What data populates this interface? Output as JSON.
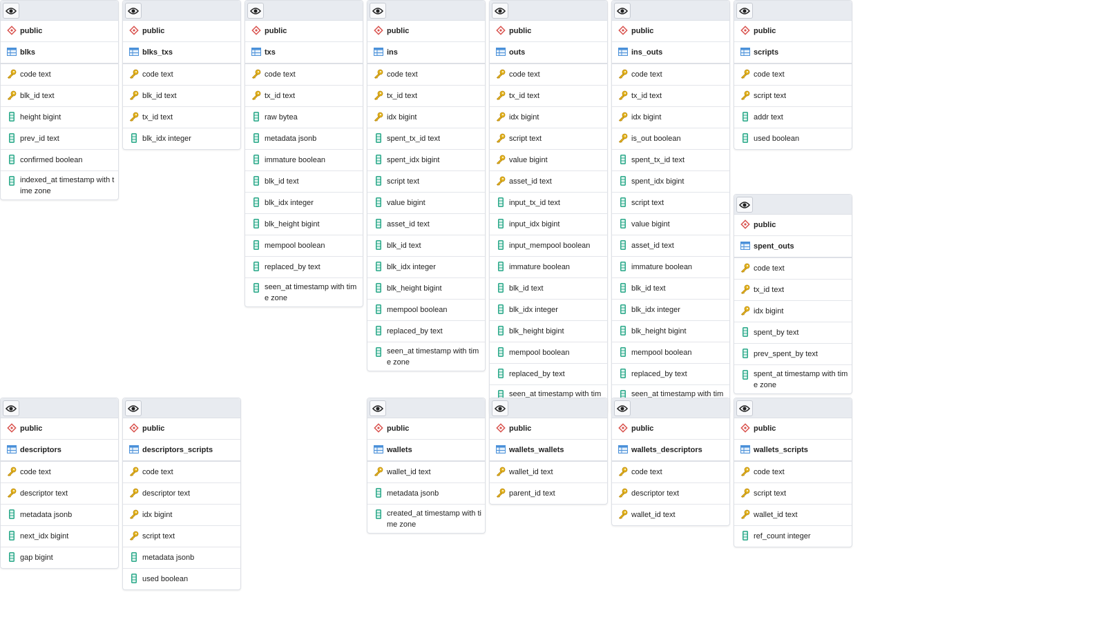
{
  "colors": {
    "header_bg": "#e8ebf0",
    "schema_icon": "#d9534f",
    "table_icon": "#4a90d9",
    "key_icon": "#e5b620",
    "column_icon": "#2aa889"
  },
  "tables": [
    {
      "schema": "public",
      "name": "blks",
      "columns": [
        {
          "label": "code text",
          "key": true
        },
        {
          "label": "blk_id text",
          "key": true
        },
        {
          "label": "height bigint",
          "key": false
        },
        {
          "label": "prev_id text",
          "key": false
        },
        {
          "label": "confirmed boolean",
          "key": false
        },
        {
          "label": "indexed_at timestamp with time zone",
          "key": false
        }
      ]
    },
    {
      "schema": "public",
      "name": "blks_txs",
      "columns": [
        {
          "label": "code text",
          "key": true
        },
        {
          "label": "blk_id text",
          "key": true
        },
        {
          "label": "tx_id text",
          "key": true
        },
        {
          "label": "blk_idx integer",
          "key": false
        }
      ]
    },
    {
      "schema": "public",
      "name": "txs",
      "columns": [
        {
          "label": "code text",
          "key": true
        },
        {
          "label": "tx_id text",
          "key": true
        },
        {
          "label": "raw bytea",
          "key": false
        },
        {
          "label": "metadata jsonb",
          "key": false
        },
        {
          "label": "immature boolean",
          "key": false
        },
        {
          "label": "blk_id text",
          "key": false
        },
        {
          "label": "blk_idx integer",
          "key": false
        },
        {
          "label": "blk_height bigint",
          "key": false
        },
        {
          "label": "mempool boolean",
          "key": false
        },
        {
          "label": "replaced_by text",
          "key": false
        },
        {
          "label": "seen_at timestamp with time zone",
          "key": false
        }
      ]
    },
    {
      "schema": "public",
      "name": "ins",
      "columns": [
        {
          "label": "code text",
          "key": true
        },
        {
          "label": "tx_id text",
          "key": true
        },
        {
          "label": "idx bigint",
          "key": true
        },
        {
          "label": "spent_tx_id text",
          "key": false
        },
        {
          "label": "spent_idx bigint",
          "key": false
        },
        {
          "label": "script text",
          "key": false
        },
        {
          "label": "value bigint",
          "key": false
        },
        {
          "label": "asset_id text",
          "key": false
        },
        {
          "label": "blk_id text",
          "key": false
        },
        {
          "label": "blk_idx integer",
          "key": false
        },
        {
          "label": "blk_height bigint",
          "key": false
        },
        {
          "label": "mempool boolean",
          "key": false
        },
        {
          "label": "replaced_by text",
          "key": false
        },
        {
          "label": "seen_at timestamp with time zone",
          "key": false
        }
      ]
    },
    {
      "schema": "public",
      "name": "outs",
      "columns": [
        {
          "label": "code text",
          "key": true
        },
        {
          "label": "tx_id text",
          "key": true
        },
        {
          "label": "idx bigint",
          "key": true
        },
        {
          "label": "script text",
          "key": true
        },
        {
          "label": "value bigint",
          "key": true
        },
        {
          "label": "asset_id text",
          "key": true
        },
        {
          "label": "input_tx_id text",
          "key": false
        },
        {
          "label": "input_idx bigint",
          "key": false
        },
        {
          "label": "input_mempool boolean",
          "key": false
        },
        {
          "label": "immature boolean",
          "key": false
        },
        {
          "label": "blk_id text",
          "key": false
        },
        {
          "label": "blk_idx integer",
          "key": false
        },
        {
          "label": "blk_height bigint",
          "key": false
        },
        {
          "label": "mempool boolean",
          "key": false
        },
        {
          "label": "replaced_by text",
          "key": false
        },
        {
          "label": "seen_at timestamp with time zone",
          "key": false
        }
      ]
    },
    {
      "schema": "public",
      "name": "ins_outs",
      "columns": [
        {
          "label": "code text",
          "key": true
        },
        {
          "label": "tx_id text",
          "key": true
        },
        {
          "label": "idx bigint",
          "key": true
        },
        {
          "label": "is_out boolean",
          "key": true
        },
        {
          "label": "spent_tx_id text",
          "key": false
        },
        {
          "label": "spent_idx bigint",
          "key": false
        },
        {
          "label": "script text",
          "key": false
        },
        {
          "label": "value bigint",
          "key": false
        },
        {
          "label": "asset_id text",
          "key": false
        },
        {
          "label": "immature boolean",
          "key": false
        },
        {
          "label": "blk_id text",
          "key": false
        },
        {
          "label": "blk_idx integer",
          "key": false
        },
        {
          "label": "blk_height bigint",
          "key": false
        },
        {
          "label": "mempool boolean",
          "key": false
        },
        {
          "label": "replaced_by text",
          "key": false
        },
        {
          "label": "seen_at timestamp with time zone",
          "key": false
        }
      ]
    },
    {
      "schema": "public",
      "name": "scripts",
      "columns": [
        {
          "label": "code text",
          "key": true
        },
        {
          "label": "script text",
          "key": true
        },
        {
          "label": "addr text",
          "key": false
        },
        {
          "label": "used boolean",
          "key": false
        }
      ]
    },
    {
      "schema": "public",
      "name": "spent_outs",
      "columns": [
        {
          "label": "code text",
          "key": true
        },
        {
          "label": "tx_id text",
          "key": true
        },
        {
          "label": "idx bigint",
          "key": true
        },
        {
          "label": "spent_by text",
          "key": false
        },
        {
          "label": "prev_spent_by text",
          "key": false
        },
        {
          "label": "spent_at timestamp with time zone",
          "key": false
        }
      ]
    },
    {
      "schema": "public",
      "name": "descriptors",
      "columns": [
        {
          "label": "code text",
          "key": true
        },
        {
          "label": "descriptor text",
          "key": true
        },
        {
          "label": "metadata jsonb",
          "key": false
        },
        {
          "label": "next_idx bigint",
          "key": false
        },
        {
          "label": "gap bigint",
          "key": false
        }
      ]
    },
    {
      "schema": "public",
      "name": "descriptors_scripts",
      "columns": [
        {
          "label": "code text",
          "key": true
        },
        {
          "label": "descriptor text",
          "key": true
        },
        {
          "label": "idx bigint",
          "key": true
        },
        {
          "label": "script text",
          "key": true
        },
        {
          "label": "metadata jsonb",
          "key": false
        },
        {
          "label": "used boolean",
          "key": false
        }
      ]
    },
    {
      "schema": "public",
      "name": "wallets",
      "columns": [
        {
          "label": "wallet_id text",
          "key": true
        },
        {
          "label": "metadata jsonb",
          "key": false
        },
        {
          "label": "created_at timestamp with time zone",
          "key": false
        }
      ]
    },
    {
      "schema": "public",
      "name": "wallets_wallets",
      "columns": [
        {
          "label": "wallet_id text",
          "key": true
        },
        {
          "label": "parent_id text",
          "key": true
        }
      ]
    },
    {
      "schema": "public",
      "name": "wallets_descriptors",
      "columns": [
        {
          "label": "code text",
          "key": true
        },
        {
          "label": "descriptor text",
          "key": true
        },
        {
          "label": "wallet_id text",
          "key": true
        }
      ]
    },
    {
      "schema": "public",
      "name": "wallets_scripts",
      "columns": [
        {
          "label": "code text",
          "key": true
        },
        {
          "label": "script text",
          "key": true
        },
        {
          "label": "wallet_id text",
          "key": true
        },
        {
          "label": "ref_count integer",
          "key": false
        }
      ]
    }
  ]
}
